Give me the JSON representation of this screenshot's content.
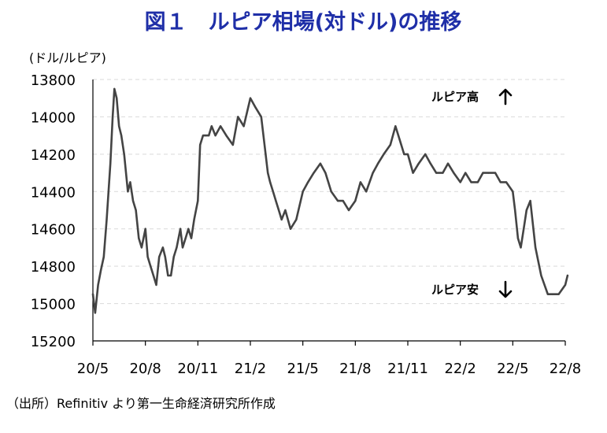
{
  "chart_data": {
    "type": "line",
    "title": "図１　ルピア相場(対ドル)の推移",
    "ylabel": "(ドル/ルピア)",
    "xlabel": "",
    "source": "（出所）Refinitiv より第一生命経済研究所作成",
    "annotations": {
      "up": "ルピア高",
      "down": "ルピア安"
    },
    "colors": {
      "title": "#1f2fa8",
      "line": "#444444",
      "grid": "#d9d9d9",
      "axis": "#000000"
    },
    "y_inverted": true,
    "ylim": [
      13800,
      15200
    ],
    "y_ticks": [
      13800,
      14000,
      14200,
      14400,
      14600,
      14800,
      15000,
      15200
    ],
    "y_tick_labels": [
      "13800",
      "14000",
      "14200",
      "14400",
      "14600",
      "14800",
      "15000",
      "15200"
    ],
    "x_tick_labels": [
      "20/5",
      "20/8",
      "20/11",
      "21/2",
      "21/5",
      "21/8",
      "21/11",
      "22/2",
      "22/5",
      "22/8"
    ],
    "x_tick_dates": [
      "2020-05",
      "2020-08",
      "2020-11",
      "2021-02",
      "2021-05",
      "2021-08",
      "2021-11",
      "2022-02",
      "2022-05",
      "2022-08"
    ],
    "grid": "horizontal dashed",
    "legend": "none",
    "series": [
      {
        "x": [
          "2020-05-01",
          "2020-05-05",
          "2020-05-10",
          "2020-05-15",
          "2020-05-20",
          "2020-05-25",
          "2020-06-01",
          "2020-06-05",
          "2020-06-08",
          "2020-06-12",
          "2020-06-16",
          "2020-06-20",
          "2020-06-25",
          "2020-07-01",
          "2020-07-05",
          "2020-07-10",
          "2020-07-15",
          "2020-07-20",
          "2020-07-25",
          "2020-08-01",
          "2020-08-05",
          "2020-08-10",
          "2020-08-15",
          "2020-08-20",
          "2020-08-25",
          "2020-09-01",
          "2020-09-05",
          "2020-09-10",
          "2020-09-15",
          "2020-09-20",
          "2020-09-25",
          "2020-10-01",
          "2020-10-05",
          "2020-10-10",
          "2020-10-15",
          "2020-10-20",
          "2020-10-25",
          "2020-11-01",
          "2020-11-05",
          "2020-11-10",
          "2020-11-15",
          "2020-11-20",
          "2020-11-25",
          "2020-12-01",
          "2020-12-10",
          "2020-12-20",
          "2021-01-01",
          "2021-01-10",
          "2021-01-20",
          "2021-02-01",
          "2021-02-10",
          "2021-02-20",
          "2021-03-01",
          "2021-03-05",
          "2021-03-10",
          "2021-03-15",
          "2021-03-20",
          "2021-03-25",
          "2021-04-01",
          "2021-04-10",
          "2021-04-20",
          "2021-05-01",
          "2021-05-10",
          "2021-05-20",
          "2021-06-01",
          "2021-06-10",
          "2021-06-20",
          "2021-07-01",
          "2021-07-10",
          "2021-07-20",
          "2021-08-01",
          "2021-08-10",
          "2021-08-20",
          "2021-09-01",
          "2021-09-10",
          "2021-09-20",
          "2021-10-01",
          "2021-10-10",
          "2021-10-15",
          "2021-10-25",
          "2021-11-01",
          "2021-11-10",
          "2021-11-20",
          "2021-12-01",
          "2021-12-10",
          "2021-12-20",
          "2022-01-01",
          "2022-01-10",
          "2022-01-20",
          "2022-02-01",
          "2022-02-10",
          "2022-02-20",
          "2022-03-01",
          "2022-03-10",
          "2022-03-20",
          "2022-04-01",
          "2022-04-10",
          "2022-04-20",
          "2022-05-01",
          "2022-05-05",
          "2022-05-10",
          "2022-05-15",
          "2022-05-20",
          "2022-05-25",
          "2022-06-01",
          "2022-06-10",
          "2022-06-20",
          "2022-07-01",
          "2022-07-10",
          "2022-07-20",
          "2022-08-01",
          "2022-08-05"
        ],
        "values": [
          14950,
          15050,
          14900,
          14820,
          14750,
          14550,
          14250,
          14000,
          13850,
          13900,
          14050,
          14100,
          14200,
          14400,
          14350,
          14450,
          14500,
          14650,
          14700,
          14600,
          14750,
          14800,
          14850,
          14900,
          14750,
          14700,
          14750,
          14850,
          14850,
          14750,
          14700,
          14600,
          14700,
          14650,
          14600,
          14650,
          14550,
          14450,
          14150,
          14100,
          14100,
          14100,
          14050,
          14100,
          14050,
          14100,
          14150,
          14000,
          14050,
          13900,
          13950,
          14000,
          14300,
          14350,
          14400,
          14450,
          14500,
          14550,
          14500,
          14600,
          14550,
          14400,
          14350,
          14300,
          14250,
          14300,
          14400,
          14450,
          14450,
          14500,
          14450,
          14350,
          14400,
          14300,
          14250,
          14200,
          14150,
          14050,
          14100,
          14200,
          14200,
          14300,
          14250,
          14200,
          14250,
          14300,
          14300,
          14250,
          14300,
          14350,
          14300,
          14350,
          14350,
          14300,
          14300,
          14300,
          14350,
          14350,
          14400,
          14500,
          14650,
          14700,
          14600,
          14500,
          14450,
          14700,
          14850,
          14950,
          14950,
          14950,
          14900,
          14850
        ]
      }
    ]
  }
}
